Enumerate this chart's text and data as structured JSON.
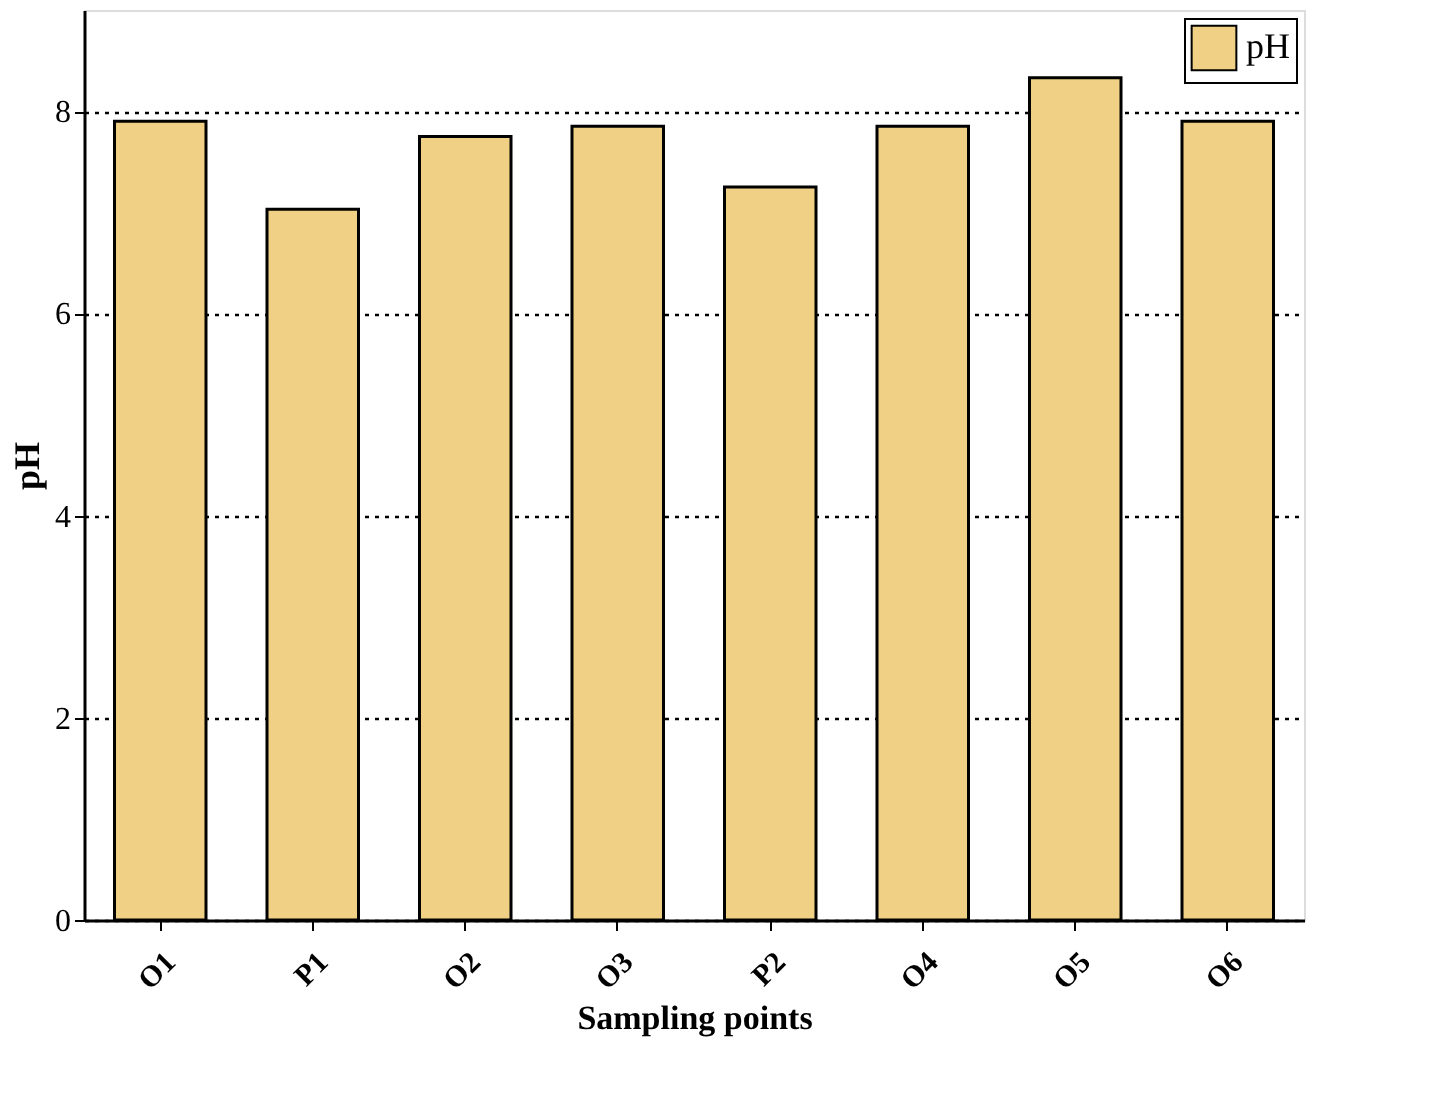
{
  "chart_data": {
    "type": "bar",
    "xlabel": "Sampling points",
    "ylabel": "pH",
    "categories": [
      "O1",
      "P1",
      "O2",
      "O3",
      "P2",
      "O4",
      "O5",
      "O6"
    ],
    "series": [
      {
        "name": "pH",
        "color": "#f0d084",
        "values": [
          7.9,
          7.03,
          7.75,
          7.85,
          7.25,
          7.85,
          8.33,
          7.9
        ]
      }
    ],
    "ylim": [
      0,
      9
    ],
    "yticks": [
      0,
      2,
      4,
      6,
      8
    ],
    "grid": "y",
    "legend": "top right"
  }
}
